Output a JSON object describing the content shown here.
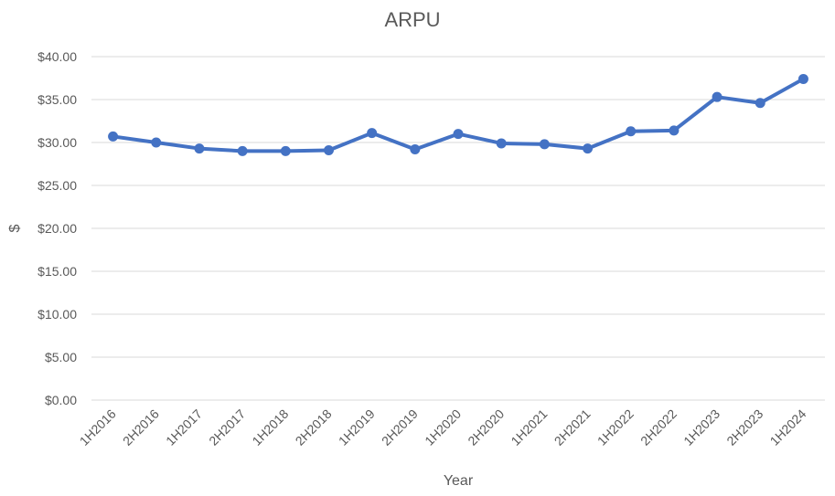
{
  "chart_data": {
    "type": "line",
    "title": "ARPU",
    "xlabel": "Year",
    "ylabel": "$",
    "ylim": [
      0,
      40
    ],
    "ytick_step": 5,
    "ytick_labels": [
      "$0.00",
      "$5.00",
      "$10.00",
      "$15.00",
      "$20.00",
      "$25.00",
      "$30.00",
      "$35.00",
      "$40.00"
    ],
    "grid": true,
    "legend": "none",
    "categories": [
      "1H2016",
      "2H2016",
      "1H2017",
      "2H2017",
      "1H2018",
      "2H2018",
      "1H2019",
      "2H2019",
      "1H2020",
      "2H2020",
      "1H2021",
      "2H2021",
      "1H2022",
      "2H2022",
      "1H2023",
      "2H2023",
      "1H2024"
    ],
    "series": [
      {
        "color": "#4472c4",
        "values": [
          30.7,
          30.0,
          29.3,
          29.0,
          29.0,
          29.1,
          31.1,
          29.2,
          31.0,
          29.9,
          29.8,
          29.3,
          31.3,
          31.4,
          35.3,
          34.6,
          37.4
        ]
      }
    ]
  }
}
